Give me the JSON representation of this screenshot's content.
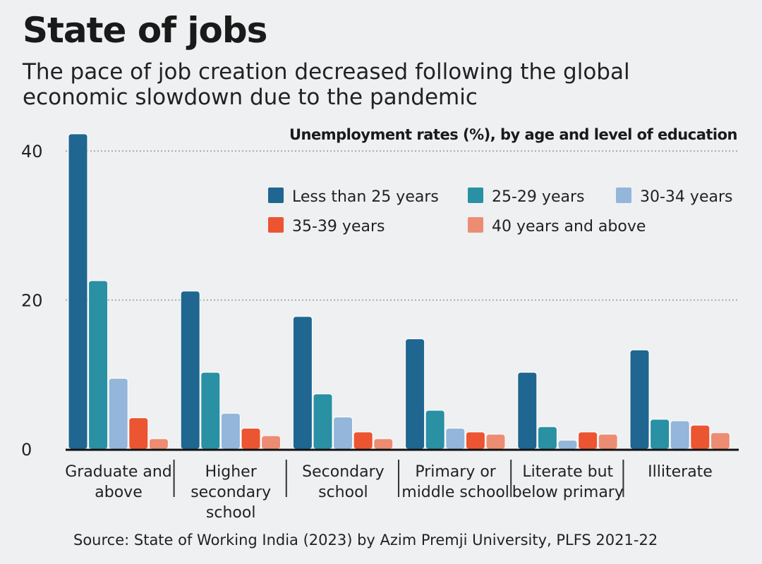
{
  "title": "State of jobs",
  "subtitle": "The pace of job creation decreased following the global economic slowdown due to the pandemic",
  "source": "Source: State of Working India (2023) by Azim Premji University, PLFS 2021-22",
  "chart_data": {
    "type": "bar",
    "title": "Unemployment rates (%), by age and level of education",
    "xlabel": "",
    "ylabel": "",
    "ylim": [
      0,
      43
    ],
    "yticks": [
      0,
      20,
      40
    ],
    "grid": true,
    "legend": "top-right",
    "categories": [
      "Graduate and above",
      "Higher secondary school",
      "Secondary school",
      "Primary or middle school",
      "Literate but below primary",
      "Illiterate"
    ],
    "series": [
      {
        "name": "Less than 25 years",
        "color": "#1f6690",
        "values": [
          42.3,
          21.2,
          17.8,
          14.8,
          10.3,
          13.3
        ]
      },
      {
        "name": "25-29 years",
        "color": "#2a90a3",
        "values": [
          22.6,
          10.3,
          7.4,
          5.2,
          3.0,
          4.0
        ]
      },
      {
        "name": "30-34 years",
        "color": "#93b6da",
        "values": [
          9.5,
          4.8,
          4.3,
          2.8,
          1.2,
          3.8
        ]
      },
      {
        "name": "35-39 years",
        "color": "#eb5531",
        "values": [
          4.2,
          2.8,
          2.3,
          2.3,
          2.3,
          3.2
        ]
      },
      {
        "name": "40 years and above",
        "color": "#ec8d73",
        "values": [
          1.4,
          1.8,
          1.4,
          2.0,
          2.0,
          2.2
        ]
      }
    ]
  }
}
